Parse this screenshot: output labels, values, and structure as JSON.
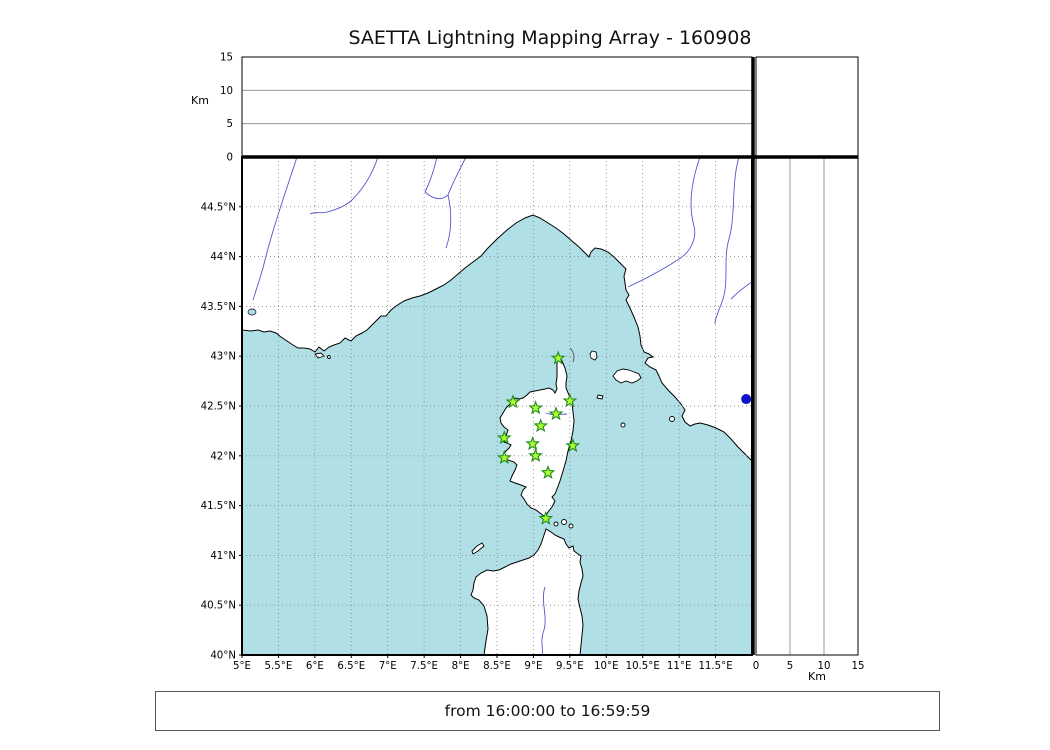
{
  "title": "SAETTA Lightning Mapping Array - 160908",
  "footer": {
    "text": "from 16:00:00 to 16:59:59"
  },
  "altitude_axis": {
    "label": "Km",
    "ticks": [
      0,
      5,
      10,
      15
    ]
  },
  "map": {
    "lon_ticks": [
      "5°E",
      "5.5°E",
      "6°E",
      "6.5°E",
      "7°E",
      "7.5°E",
      "8°E",
      "8.5°E",
      "9°E",
      "9.5°E",
      "10°E",
      "10.5°E",
      "11°E",
      "11.5°E"
    ],
    "lat_ticks": [
      "40°N",
      "40.5°N",
      "41°N",
      "41.5°N",
      "42°N",
      "42.5°N",
      "43°N",
      "43.5°N",
      "44°N",
      "44.5°N"
    ],
    "sea_color": "#b0e0e6",
    "land_color": "#ffffff",
    "river_color": "#5555cc"
  },
  "chart_data": {
    "type": "scatter",
    "title": "SAETTA Lightning Mapping Array - 160908",
    "time_window": "from 16:00:00 to 16:59:59",
    "map_extent": {
      "lon": [
        5,
        12
      ],
      "lat": [
        40,
        45
      ]
    },
    "altitude_km_range": [
      0,
      15
    ],
    "station_marker": {
      "shape": "star",
      "fill": "#adff2f",
      "edge": "#1f8a1f"
    },
    "stations": [
      {
        "lon": 9.34,
        "lat": 42.98
      },
      {
        "lon": 8.72,
        "lat": 42.54
      },
      {
        "lon": 9.03,
        "lat": 42.48
      },
      {
        "lon": 9.5,
        "lat": 42.55
      },
      {
        "lon": 9.31,
        "lat": 42.42
      },
      {
        "lon": 9.1,
        "lat": 42.3
      },
      {
        "lon": 8.6,
        "lat": 42.18
      },
      {
        "lon": 8.99,
        "lat": 42.12
      },
      {
        "lon": 9.54,
        "lat": 42.1
      },
      {
        "lon": 8.6,
        "lat": 41.98
      },
      {
        "lon": 9.03,
        "lat": 42.0
      },
      {
        "lon": 9.2,
        "lat": 41.83
      },
      {
        "lon": 9.17,
        "lat": 41.37
      }
    ],
    "sources": [
      {
        "lon": 11.92,
        "lat": 42.57,
        "color": "#1111cc"
      }
    ]
  }
}
